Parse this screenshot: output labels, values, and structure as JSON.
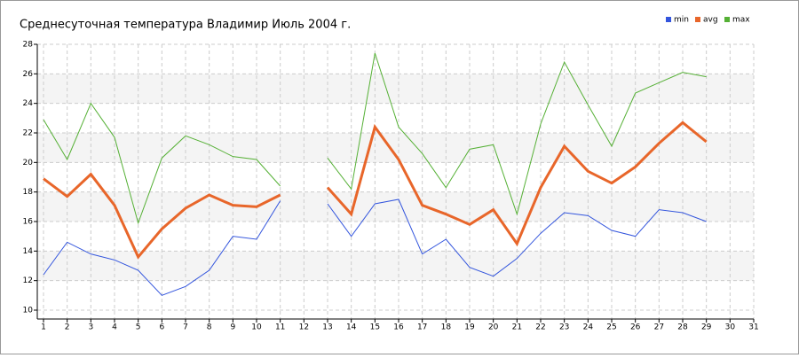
{
  "chart_data": {
    "type": "line",
    "title": "Среднесуточная температура Владимир  Июль 2004 г.",
    "x": [
      1,
      2,
      3,
      4,
      5,
      6,
      7,
      8,
      9,
      10,
      11,
      12,
      13,
      14,
      15,
      16,
      17,
      18,
      19,
      20,
      21,
      22,
      23,
      24,
      25,
      26,
      27,
      28,
      29
    ],
    "series": [
      {
        "name": "min",
        "color": "#3355dd",
        "values": [
          12.4,
          14.6,
          13.8,
          13.4,
          12.7,
          11.0,
          11.6,
          12.7,
          15.0,
          14.8,
          17.4,
          null,
          17.2,
          15.0,
          17.2,
          17.5,
          13.8,
          14.8,
          12.9,
          12.3,
          13.5,
          15.2,
          16.6,
          16.4,
          15.4,
          15.0,
          16.8,
          16.6,
          16.0
        ]
      },
      {
        "name": "avg",
        "color": "#e8662a",
        "values": [
          18.9,
          17.7,
          19.2,
          17.1,
          13.6,
          15.5,
          16.9,
          17.8,
          17.1,
          17.0,
          17.8,
          null,
          18.3,
          16.5,
          22.4,
          20.2,
          17.1,
          16.5,
          15.8,
          16.8,
          14.5,
          18.3,
          21.1,
          19.4,
          18.6,
          19.7,
          21.3,
          22.7,
          21.4
        ]
      },
      {
        "name": "max",
        "color": "#55b035",
        "values": [
          22.9,
          20.2,
          24.0,
          21.7,
          15.9,
          20.3,
          21.8,
          21.2,
          20.4,
          20.2,
          18.4,
          null,
          20.3,
          18.2,
          27.4,
          22.4,
          20.6,
          18.3,
          20.9,
          21.2,
          16.5,
          22.6,
          26.8,
          23.9,
          21.1,
          24.7,
          25.4,
          26.1,
          25.8
        ]
      }
    ],
    "xlim": [
      1,
      31
    ],
    "xticks": [
      1,
      2,
      3,
      4,
      5,
      6,
      7,
      8,
      9,
      10,
      11,
      12,
      13,
      14,
      15,
      16,
      17,
      18,
      19,
      20,
      21,
      22,
      23,
      24,
      25,
      26,
      27,
      28,
      29,
      30,
      31
    ],
    "ylim": [
      10,
      28
    ],
    "yticks": [
      10,
      12,
      14,
      16,
      18,
      20,
      22,
      24,
      26,
      28
    ],
    "grid": true,
    "legend": "top-right"
  }
}
